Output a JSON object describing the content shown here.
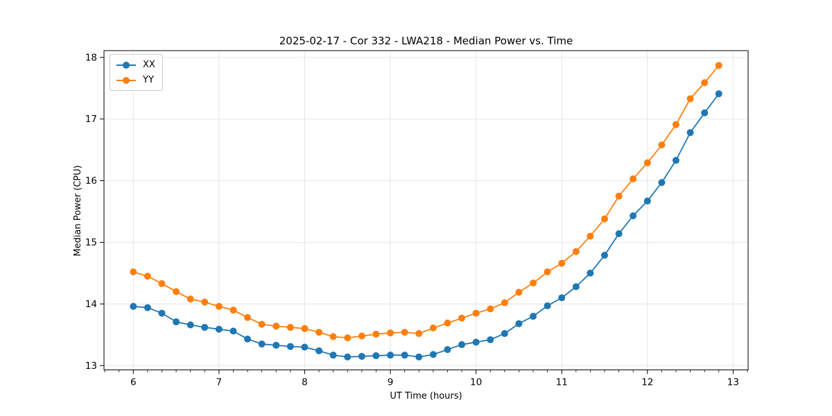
{
  "figure": {
    "background": "#ffffff"
  },
  "chart_data": {
    "type": "line",
    "title": "2025-02-17 - Cor 332 - LWA218 - Median Power vs. Time",
    "xlabel": "UT Time (hours)",
    "ylabel": "Median Power (CPU)",
    "x": [
      6.0,
      6.167,
      6.333,
      6.5,
      6.667,
      6.833,
      7.0,
      7.167,
      7.333,
      7.5,
      7.667,
      7.833,
      8.0,
      8.167,
      8.333,
      8.5,
      8.667,
      8.833,
      9.0,
      9.167,
      9.333,
      9.5,
      9.667,
      9.833,
      10.0,
      10.167,
      10.333,
      10.5,
      10.667,
      10.833,
      11.0,
      11.167,
      11.333,
      11.5,
      11.667,
      11.833,
      12.0,
      12.167,
      12.333,
      12.5,
      12.667,
      12.833
    ],
    "series": [
      {
        "name": "XX",
        "color": "#1f77b4",
        "values": [
          13.96,
          13.94,
          13.85,
          13.71,
          13.66,
          13.62,
          13.59,
          13.56,
          13.43,
          13.35,
          13.33,
          13.31,
          13.3,
          13.24,
          13.17,
          13.14,
          13.15,
          13.16,
          13.17,
          13.17,
          13.14,
          13.18,
          13.26,
          13.34,
          13.38,
          13.42,
          13.52,
          13.68,
          13.8,
          13.97,
          14.1,
          14.28,
          14.5,
          14.79,
          15.14,
          15.43,
          15.67,
          15.97,
          16.33,
          16.78,
          17.1,
          17.41
        ]
      },
      {
        "name": "YY",
        "color": "#ff7f0e",
        "values": [
          14.52,
          14.45,
          14.33,
          14.2,
          14.08,
          14.03,
          13.96,
          13.9,
          13.78,
          13.67,
          13.64,
          13.62,
          13.6,
          13.54,
          13.47,
          13.45,
          13.48,
          13.51,
          13.53,
          13.54,
          13.52,
          13.61,
          13.69,
          13.77,
          13.85,
          13.92,
          14.02,
          14.19,
          14.34,
          14.52,
          14.66,
          14.85,
          15.1,
          15.38,
          15.75,
          16.03,
          16.29,
          16.58,
          16.91,
          17.33,
          17.59,
          17.87
        ]
      }
    ],
    "xlim": [
      5.658,
      13.175
    ],
    "ylim": [
      12.93,
      18.11
    ],
    "xticks": [
      6,
      7,
      8,
      9,
      10,
      11,
      12,
      13
    ],
    "yticks": [
      13,
      14,
      15,
      16,
      17,
      18
    ],
    "x_minor_step": 0.1666667,
    "grid": true,
    "legend_position": "upper-left",
    "marker": "circle",
    "grid_color": "#e3e3e3",
    "axis_color": "#000000",
    "tick_color": "#000000"
  }
}
